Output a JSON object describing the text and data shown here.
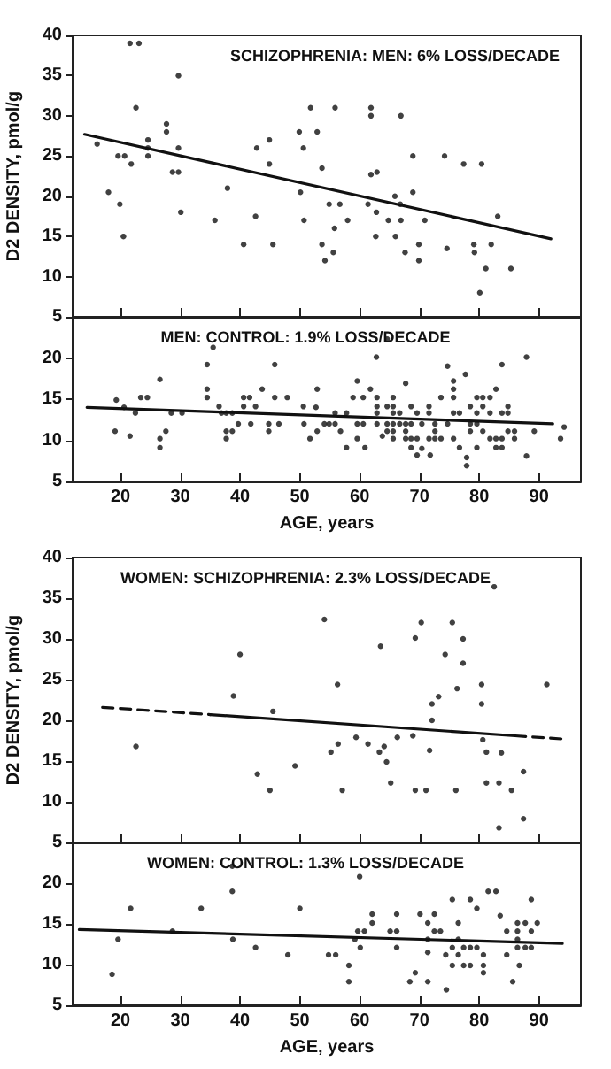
{
  "chart_data": [
    {
      "type": "scatter",
      "title": "SCHIZOPHRENIA: MEN: 6% LOSS/DECADE",
      "ylabel": "D2 DENSITY, pmol/g",
      "xlim": [
        12,
        97
      ],
      "xticks": [
        20,
        30,
        40,
        50,
        60,
        70,
        80,
        90
      ],
      "ylim": [
        5,
        40
      ],
      "yticks": [
        5,
        10,
        15,
        20,
        25,
        30,
        35,
        40
      ],
      "tick_labels": "y",
      "marker": "circle",
      "series": [
        {
          "type": "scatter",
          "color": "#111111",
          "x": [
            16.1,
            18.0,
            19.6,
            20.7,
            19.9,
            20.5,
            21.6,
            23.1,
            22.6,
            21.8,
            24.6,
            24.6,
            24.6,
            27.7,
            27.7,
            28.7,
            29.7,
            29.7,
            29.7,
            30.1,
            35.8,
            37.9,
            40.6,
            42.6,
            42.8,
            44.9,
            44.9,
            45.5,
            49.9,
            50.6,
            50.1,
            50.7,
            51.8,
            52.9,
            53.7,
            53.7,
            54.2,
            54.9,
            55.9,
            55.8,
            55.6,
            56.7,
            58.0,
            61.9,
            61.9,
            61.4,
            61.9,
            62.9,
            62.8,
            62.7,
            64.8,
            65.9,
            66.0,
            66.9,
            66.8,
            66.9,
            67.6,
            68.9,
            68.9,
            69.9,
            69.9,
            70.9,
            74.2,
            74.6,
            77.4,
            79.1,
            79.2,
            80.4,
            81.1,
            80.1,
            82.0,
            83.1,
            85.3
          ],
          "values": [
            26.5,
            20.5,
            25,
            25,
            19,
            15,
            39,
            39,
            31,
            24,
            27,
            26,
            25,
            29,
            28,
            23,
            23,
            35,
            26,
            18,
            17,
            21,
            14,
            17.5,
            26,
            27,
            24,
            14,
            28,
            26,
            20.5,
            17,
            31,
            28,
            23.5,
            14,
            12,
            19,
            31,
            16,
            13,
            19,
            17,
            31,
            30,
            19,
            22.7,
            23,
            18,
            15,
            17,
            20,
            15,
            30,
            19,
            17,
            13,
            25,
            20.5,
            14,
            12,
            17,
            25,
            13.5,
            24,
            14,
            13,
            24,
            11,
            8,
            14,
            17.5,
            11
          ]
        },
        {
          "type": "line",
          "color": "#111111",
          "x": [
            14,
            92
          ],
          "values": [
            27.7,
            14.7
          ],
          "line_style": "solid",
          "marker": "none"
        }
      ]
    },
    {
      "type": "scatter",
      "title": "MEN: CONTROL: 1.9% LOSS/DECADE",
      "xlabel": "AGE, years",
      "xlim": [
        12,
        97
      ],
      "xticks": [
        20,
        30,
        40,
        50,
        60,
        70,
        80,
        90
      ],
      "ylim": [
        5,
        25
      ],
      "yticks": [
        5,
        10,
        15,
        20
      ],
      "marker": "circle",
      "series": [
        {
          "type": "scatter",
          "color": "#111111",
          "x": [
            19.1,
            19.3,
            20.6,
            21.6,
            22.5,
            23.4,
            24.5,
            26.6,
            26.6,
            26.6,
            27.6,
            28.5,
            30.3,
            34.5,
            34.5,
            34.5,
            35.5,
            36.5,
            36.9,
            37.7,
            38.7,
            37.7,
            38.7,
            37.7,
            39.7,
            40.6,
            41.6,
            40.6,
            41.8,
            42.6,
            43.7,
            44.8,
            44.8,
            45.8,
            45.8,
            46.5,
            47.9,
            50.6,
            50.7,
            51.7,
            52.9,
            52.7,
            52.9,
            54.1,
            54.9,
            55.9,
            55.9,
            56.8,
            57.8,
            57.8,
            58.9,
            59.6,
            59.6,
            59.6,
            60.6,
            60.6,
            60.9,
            61.8,
            62.8,
            62.9,
            62.9,
            62.9,
            62.9,
            64.6,
            63.8,
            64.6,
            64.6,
            64.6,
            65.6,
            65.6,
            65.6,
            65.6,
            65.6,
            65.6,
            66.7,
            66.7,
            67.7,
            67.7,
            67.7,
            67.7,
            68.6,
            68.6,
            68.6,
            68.6,
            69.6,
            69.6,
            69.6,
            70.4,
            70.4,
            71.6,
            71.6,
            71.6,
            71.8,
            72.6,
            72.6,
            72.6,
            73.6,
            73.6,
            74.7,
            74.7,
            75.7,
            75.7,
            75.7,
            75.7,
            75.7,
            76.7,
            76.7,
            77.7,
            77.9,
            77.9,
            78.5,
            78.5,
            78.5,
            79.6,
            79.6,
            79.6,
            79.6,
            80.6,
            80.6,
            80.6,
            81.8,
            81.8,
            81.8,
            82.8,
            82.8,
            82.8,
            83.8,
            83.8,
            83.8,
            83.8,
            84.8,
            84.8,
            84.8,
            85.9,
            85.9,
            87.9,
            87.9,
            89.2,
            93.6,
            94.2
          ],
          "values": [
            11.1,
            14.9,
            14,
            10.5,
            13.3,
            15.2,
            15.2,
            17.4,
            10.2,
            9.1,
            11.1,
            13.3,
            13.3,
            19.2,
            16.2,
            15.2,
            21.3,
            14.1,
            13.3,
            13.3,
            13.3,
            11.1,
            11.1,
            10.2,
            12,
            15.2,
            15.2,
            14.1,
            12,
            14.1,
            16.2,
            12,
            11.1,
            19.2,
            15.2,
            12,
            15.2,
            14.1,
            12,
            10.2,
            16.2,
            14,
            11.1,
            12,
            12,
            13.3,
            12,
            11.1,
            13.3,
            9.1,
            15.2,
            17.2,
            12,
            10.2,
            15.2,
            12,
            9.1,
            16.2,
            20.1,
            15.2,
            14.1,
            13.3,
            12,
            22.3,
            10.5,
            14.1,
            12,
            11.1,
            15.2,
            14.1,
            13.3,
            12,
            11.1,
            10.2,
            13.3,
            12,
            16.9,
            12,
            11.1,
            10.2,
            14.1,
            12,
            10.2,
            9.1,
            13.3,
            10.2,
            8.2,
            12,
            9,
            14.1,
            13.3,
            10.2,
            8.2,
            12,
            11.1,
            10.2,
            15.2,
            10.2,
            19,
            12,
            17.2,
            16.2,
            15.2,
            13.3,
            10.2,
            13.3,
            9.1,
            18,
            7.9,
            6.9,
            14.1,
            12,
            11.1,
            15.2,
            13.3,
            12,
            9.1,
            15.2,
            14.1,
            11.1,
            15.2,
            13.3,
            10.2,
            16.2,
            10.2,
            9.1,
            19.2,
            13.3,
            10.2,
            9.1,
            14.1,
            13.3,
            11.1,
            11.1,
            10.2,
            20.1,
            8.1,
            11.1,
            10.2,
            11.6
          ]
        },
        {
          "type": "line",
          "color": "#111111",
          "x": [
            14.4,
            92.3
          ],
          "values": [
            14,
            12
          ],
          "line_style": "solid",
          "marker": "none"
        }
      ]
    },
    {
      "type": "scatter",
      "title": "WOMEN: SCHIZOPHRENIA: 2.3% LOSS/DECADE",
      "ylabel": "D2 DENSITY, pmol/g",
      "xlim": [
        12,
        97
      ],
      "xticks": [
        20,
        30,
        40,
        50,
        60,
        70,
        80,
        90
      ],
      "ylim": [
        5,
        40
      ],
      "yticks": [
        5,
        10,
        15,
        20,
        25,
        30,
        35,
        40
      ],
      "tick_labels": "y",
      "marker": "circle",
      "series": [
        {
          "type": "scatter",
          "color": "#111111",
          "x": [
            22.6,
            38.9,
            40.0,
            42.9,
            45.0,
            45.5,
            49.2,
            54.1,
            55.2,
            56.3,
            56.4,
            57.1,
            59.4,
            61.4,
            63.3,
            63.5,
            64.1,
            64.5,
            65.2,
            66.3,
            68.9,
            69.3,
            69.3,
            70.3,
            71.1,
            71.7,
            72.1,
            72.1,
            73.2,
            74.3,
            75.5,
            76.3,
            76.1,
            77.3,
            77.3,
            80.4,
            80.4,
            80.6,
            81.2,
            81.2,
            82.5,
            83.3,
            83.7,
            85.4,
            87.4,
            91.3,
            83.3,
            87.4
          ],
          "values": [
            16.8,
            23,
            28.1,
            13.4,
            11.4,
            21.1,
            14.4,
            32.4,
            16.1,
            24.4,
            17.1,
            11.4,
            17.9,
            17.1,
            16.1,
            29.1,
            16.8,
            14.9,
            12.3,
            17.9,
            18.1,
            30.1,
            11.4,
            32,
            11.4,
            16.3,
            22,
            20,
            22.9,
            28.1,
            32,
            23.9,
            11.4,
            30,
            27,
            24.4,
            22,
            17.6,
            16.1,
            12.3,
            36.4,
            12.3,
            16,
            11.4,
            13.7,
            24.4,
            6.8,
            7.9
          ]
        },
        {
          "type": "line",
          "color": "#111111",
          "x": [
            17,
            35
          ],
          "values": [
            21.6,
            20.7
          ],
          "line_style": "dashed",
          "marker": "none"
        },
        {
          "type": "line",
          "color": "#111111",
          "x": [
            35,
            86
          ],
          "values": [
            20.7,
            18.1
          ],
          "line_style": "solid",
          "marker": "none"
        },
        {
          "type": "line",
          "color": "#111111",
          "x": [
            86,
            94
          ],
          "values": [
            18.1,
            17.7
          ],
          "line_style": "dashed",
          "marker": "none"
        }
      ]
    },
    {
      "type": "scatter",
      "title": "WOMEN: CONTROL: 1.3% LOSS/DECADE",
      "xlabel": "AGE, years",
      "xlim": [
        12,
        97
      ],
      "xticks": [
        20,
        30,
        40,
        50,
        60,
        70,
        80,
        90
      ],
      "ylim": [
        5,
        25
      ],
      "yticks": [
        5,
        10,
        15,
        20
      ],
      "marker": "circle",
      "series": [
        {
          "type": "scatter",
          "color": "#111111",
          "x": [
            18.6,
            19.6,
            21.7,
            28.7,
            33.5,
            38.7,
            38.7,
            38.8,
            42.6,
            48.0,
            50.0,
            54.8,
            56.0,
            58.2,
            58.2,
            59.2,
            60.0,
            59.7,
            60.8,
            60.1,
            62.1,
            62.1,
            65.1,
            66.2,
            66.2,
            66.2,
            68.4,
            69.3,
            70.1,
            71.4,
            71.4,
            71.4,
            71.4,
            72.5,
            72.5,
            73.5,
            74.4,
            74.5,
            75.5,
            75.5,
            75.5,
            76.5,
            76.5,
            76.5,
            77.4,
            77.4,
            78.5,
            78.5,
            78.5,
            79.6,
            79.6,
            80.7,
            80.7,
            80.7,
            81.5,
            82.8,
            83.5,
            84.6,
            84.6,
            85.6,
            86.4,
            86.4,
            86.4,
            86.4,
            86.7,
            87.7,
            87.7,
            88.7,
            88.7,
            88.7,
            89.7
          ],
          "values": [
            8.8,
            13.1,
            16.9,
            14.1,
            16.9,
            22.1,
            19,
            13.1,
            12.1,
            11.2,
            16.9,
            11.2,
            11.2,
            9.9,
            7.9,
            13.1,
            20.8,
            14.1,
            14.1,
            12.1,
            16.2,
            15.1,
            14.1,
            16.2,
            14.1,
            12.1,
            7.9,
            9,
            16.2,
            15.1,
            13.1,
            11.5,
            7.9,
            16.2,
            14.1,
            14.1,
            11.2,
            6.9,
            18,
            12.1,
            9.9,
            15.1,
            13.1,
            11.2,
            12.1,
            9.9,
            12.1,
            9.9,
            18,
            16.9,
            12.1,
            11.2,
            9.9,
            9,
            19,
            19,
            16,
            14.1,
            11.2,
            7.9,
            15.1,
            14.1,
            13.1,
            12.1,
            9.9,
            15.1,
            12.1,
            18,
            14.1,
            12.1,
            15.1
          ]
        },
        {
          "type": "line",
          "color": "#111111",
          "x": [
            13.1,
            93.9
          ],
          "values": [
            14.3,
            12.6
          ],
          "line_style": "solid",
          "marker": "none"
        }
      ]
    }
  ]
}
